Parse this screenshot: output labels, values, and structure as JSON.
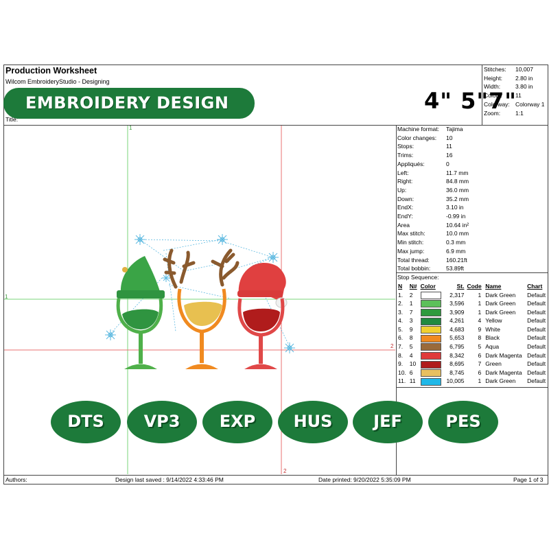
{
  "header": {
    "title": "Production Worksheet",
    "subtitle": "Wilcom EmbroideryStudio - Designing",
    "title_label": "Title:"
  },
  "banner": {
    "text": "EMBROIDERY DESIGN",
    "color": "#1d7a3a"
  },
  "sizes": "4\" 5\"7\"",
  "summary": [
    {
      "label": "Stitches:",
      "value": "10,007"
    },
    {
      "label": "Height:",
      "value": "2.80 in"
    },
    {
      "label": "Width:",
      "value": "3.80 in"
    },
    {
      "label": "Colors:",
      "value": "11"
    },
    {
      "label": "Colorway:",
      "value": "Colorway 1"
    },
    {
      "label": "Zoom:",
      "value": "1:1"
    }
  ],
  "machine_info": [
    {
      "label": "Machine format:",
      "value": "Tajima"
    },
    {
      "label": "Color changes:",
      "value": "10"
    },
    {
      "label": "Stops:",
      "value": "11"
    },
    {
      "label": "Trims:",
      "value": "16"
    },
    {
      "label": "Appliqués:",
      "value": "0"
    },
    {
      "label": "Left:",
      "value": "11.7 mm"
    },
    {
      "label": "Right:",
      "value": "84.8 mm"
    },
    {
      "label": "Up:",
      "value": "36.0 mm"
    },
    {
      "label": "Down:",
      "value": "35.2 mm"
    },
    {
      "label": "EndX:",
      "value": "3.10 in"
    },
    {
      "label": "EndY:",
      "value": "-0.99 in"
    },
    {
      "label": "Area",
      "value": "10.64 in²"
    },
    {
      "label": "Max stitch:",
      "value": "10.0 mm"
    },
    {
      "label": "Min stitch:",
      "value": "0.3 mm"
    },
    {
      "label": "Max jump:",
      "value": "6.9 mm"
    },
    {
      "label": "Total thread:",
      "value": "160.21ft"
    },
    {
      "label": "Total bobbin:",
      "value": "53.89ft"
    }
  ],
  "stop_sequence": {
    "title": "Stop Sequence:",
    "headers": {
      "n": "N",
      "nnum": "N#",
      "color": "Color",
      "st": "St.",
      "code": "Code",
      "name": "Name",
      "chart": "Chart"
    },
    "rows": [
      {
        "n": "1.",
        "nnum": "2",
        "color": "#ffffff",
        "st": "2,317",
        "code": "1",
        "name": "Dark Green",
        "chart": "Default"
      },
      {
        "n": "2.",
        "nnum": "1",
        "color": "#5cc05a",
        "st": "3,596",
        "code": "1",
        "name": "Dark Green",
        "chart": "Default"
      },
      {
        "n": "3.",
        "nnum": "7",
        "color": "#2e9a3e",
        "st": "3,909",
        "code": "1",
        "name": "Dark Green",
        "chart": "Default"
      },
      {
        "n": "4.",
        "nnum": "3",
        "color": "#208a40",
        "st": "4,261",
        "code": "4",
        "name": "Yellow",
        "chart": "Default"
      },
      {
        "n": "5.",
        "nnum": "9",
        "color": "#f0d030",
        "st": "4,683",
        "code": "9",
        "name": "White",
        "chart": "Default"
      },
      {
        "n": "6.",
        "nnum": "8",
        "color": "#f08a20",
        "st": "5,653",
        "code": "8",
        "name": "Black",
        "chart": "Default"
      },
      {
        "n": "7.",
        "nnum": "5",
        "color": "#9a6a3a",
        "st": "6,795",
        "code": "5",
        "name": "Aqua",
        "chart": "Default"
      },
      {
        "n": "8.",
        "nnum": "4",
        "color": "#e03a3a",
        "st": "8,342",
        "code": "6",
        "name": "Dark Magenta",
        "chart": "Default"
      },
      {
        "n": "9.",
        "nnum": "10",
        "color": "#b01c1c",
        "st": "8,695",
        "code": "7",
        "name": "Green",
        "chart": "Default"
      },
      {
        "n": "10.",
        "nnum": "6",
        "color": "#e8c060",
        "st": "8,745",
        "code": "6",
        "name": "Dark Magenta",
        "chart": "Default"
      },
      {
        "n": "11.",
        "nnum": "11",
        "color": "#20b8e8",
        "st": "10,005",
        "code": "1",
        "name": "Dark Green",
        "chart": "Default"
      }
    ]
  },
  "formats": [
    "DTS",
    "VP3",
    "EXP",
    "HUS",
    "JEF",
    "PES"
  ],
  "guides": {
    "green_label": "1",
    "red_label": "2"
  },
  "footer": {
    "authors": "Authors:",
    "saved": "Design last saved : 9/14/2022 4:33:46 PM",
    "printed": "Date printed: 9/20/2022 5:35:09 PM",
    "page": "Page 1 of 3"
  }
}
